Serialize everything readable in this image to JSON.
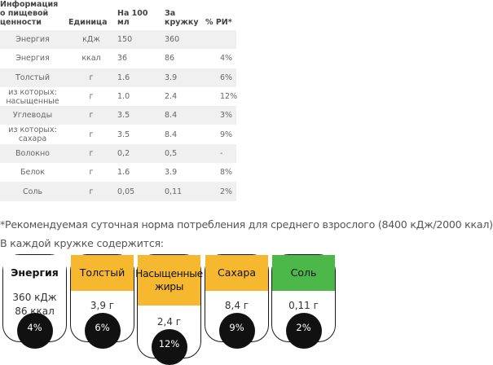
{
  "table": {
    "headers": [
      "Информация о пищевой ценности",
      "Единица",
      "На 100 мл",
      "За кружку",
      "% РИ*"
    ],
    "rows": [
      [
        "Энергия",
        "кДж",
        "150",
        "360",
        ""
      ],
      [
        "Энергия",
        "ккал",
        "36",
        "86",
        "4%"
      ],
      [
        "Толстый",
        "г",
        "1.6",
        "3.9",
        "6%"
      ],
      [
        "из которых: насыщенные",
        "г",
        "1.0",
        "2.4",
        "12%"
      ],
      [
        "Углеводы",
        "г",
        "3.5",
        "8.4",
        "3%"
      ],
      [
        "из которых: сахара",
        "г",
        "3.5",
        "8.4",
        "9%"
      ],
      [
        "Волокно",
        "г",
        "0,2",
        "0,5",
        "-"
      ],
      [
        "Белок",
        "г",
        "1.6",
        "3.9",
        "8%"
      ],
      [
        "Соль",
        "г",
        "0,05",
        "0,11",
        "2%"
      ]
    ]
  },
  "footnote": "*Рекомендуемая суточная норма потребления для среднего взрослого (8400 кДж/2000 ккал)",
  "per_mug_label": "В каждой кружке содержится:",
  "cards": [
    {
      "name": "Энергия",
      "values": [
        "360 кДж",
        "86 ккал"
      ],
      "pct": "4%",
      "color": "#ffffff"
    },
    {
      "name": "Толстый",
      "values": [
        "3,9 г"
      ],
      "pct": "6%",
      "color": "#f5b82e"
    },
    {
      "name": "Насыщенные жиры",
      "values": [
        "2,4 г"
      ],
      "pct": "12%",
      "color": "#f5b82e"
    },
    {
      "name": "Сахара",
      "values": [
        "8,4 г"
      ],
      "pct": "9%",
      "color": "#f5b82e"
    },
    {
      "name": "Соль",
      "values": [
        "0,11 г"
      ],
      "pct": "2%",
      "color": "#4cb84a"
    }
  ]
}
